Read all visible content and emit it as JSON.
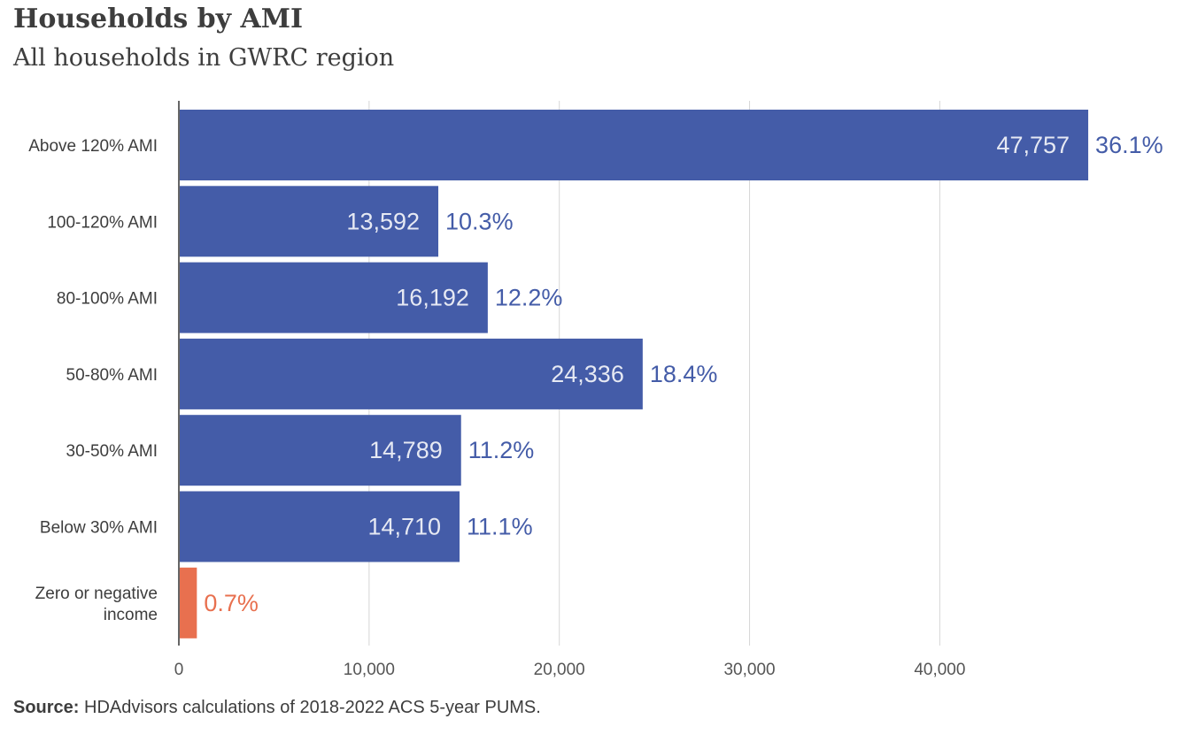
{
  "chart_data": {
    "type": "bar",
    "orientation": "horizontal",
    "title": "Households by AMI",
    "subtitle": "All households in GWRC region",
    "categories": [
      "Above 120% AMI",
      "100-120% AMI",
      "80-100% AMI",
      "50-80% AMI",
      "30-50% AMI",
      "Below 30% AMI",
      "Zero or negative income"
    ],
    "values": [
      47757,
      13592,
      16192,
      24336,
      14789,
      14710,
      900
    ],
    "value_labels": [
      "47,757",
      "13,592",
      "16,192",
      "24,336",
      "14,789",
      "14,710",
      ""
    ],
    "percent_labels": [
      "36.1%",
      "10.3%",
      "12.2%",
      "18.4%",
      "11.2%",
      "11.1%",
      "0.7%"
    ],
    "bar_colors": [
      "#445ca8",
      "#445ca8",
      "#445ca8",
      "#445ca8",
      "#445ca8",
      "#445ca8",
      "#e8704f"
    ],
    "xlim": [
      0,
      51500
    ],
    "x_ticks": [
      0,
      10000,
      20000,
      30000,
      40000
    ],
    "x_tick_labels": [
      "0",
      "10,000",
      "20,000",
      "30,000",
      "40,000"
    ],
    "grid": "vertical",
    "xlabel": "",
    "ylabel": ""
  },
  "source": {
    "label": "Source:",
    "text": " HDAdvisors  calculations of 2018-2022  ACS 5-year PUMS."
  }
}
